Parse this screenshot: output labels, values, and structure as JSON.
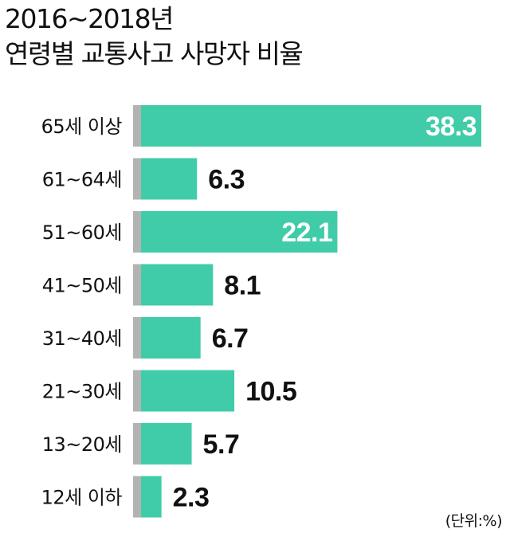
{
  "chart_data": {
    "type": "bar",
    "orientation": "horizontal",
    "title_lines": [
      "2016~2018년",
      "연령별 교통사고 사망자 비율"
    ],
    "unit_note": "(단위:%)",
    "categories": [
      "65세 이상",
      "61~64세",
      "51~60세",
      "41~50세",
      "31~40세",
      "21~30세",
      "13~20세",
      "12세 이하"
    ],
    "values": [
      38.3,
      6.3,
      22.1,
      8.1,
      6.7,
      10.5,
      5.7,
      2.3
    ],
    "value_labels": [
      "38.3",
      "6.3",
      "22.1",
      "8.1",
      "6.7",
      "10.5",
      "5.7",
      "2.3"
    ],
    "xlim": [
      0,
      38.3
    ],
    "grid": false,
    "legend": "none",
    "colors": {
      "bar": "#40cca8",
      "bar_stub": "#b3b3b3",
      "label_inside": "#ffffff",
      "label_outside": "#111111"
    }
  }
}
